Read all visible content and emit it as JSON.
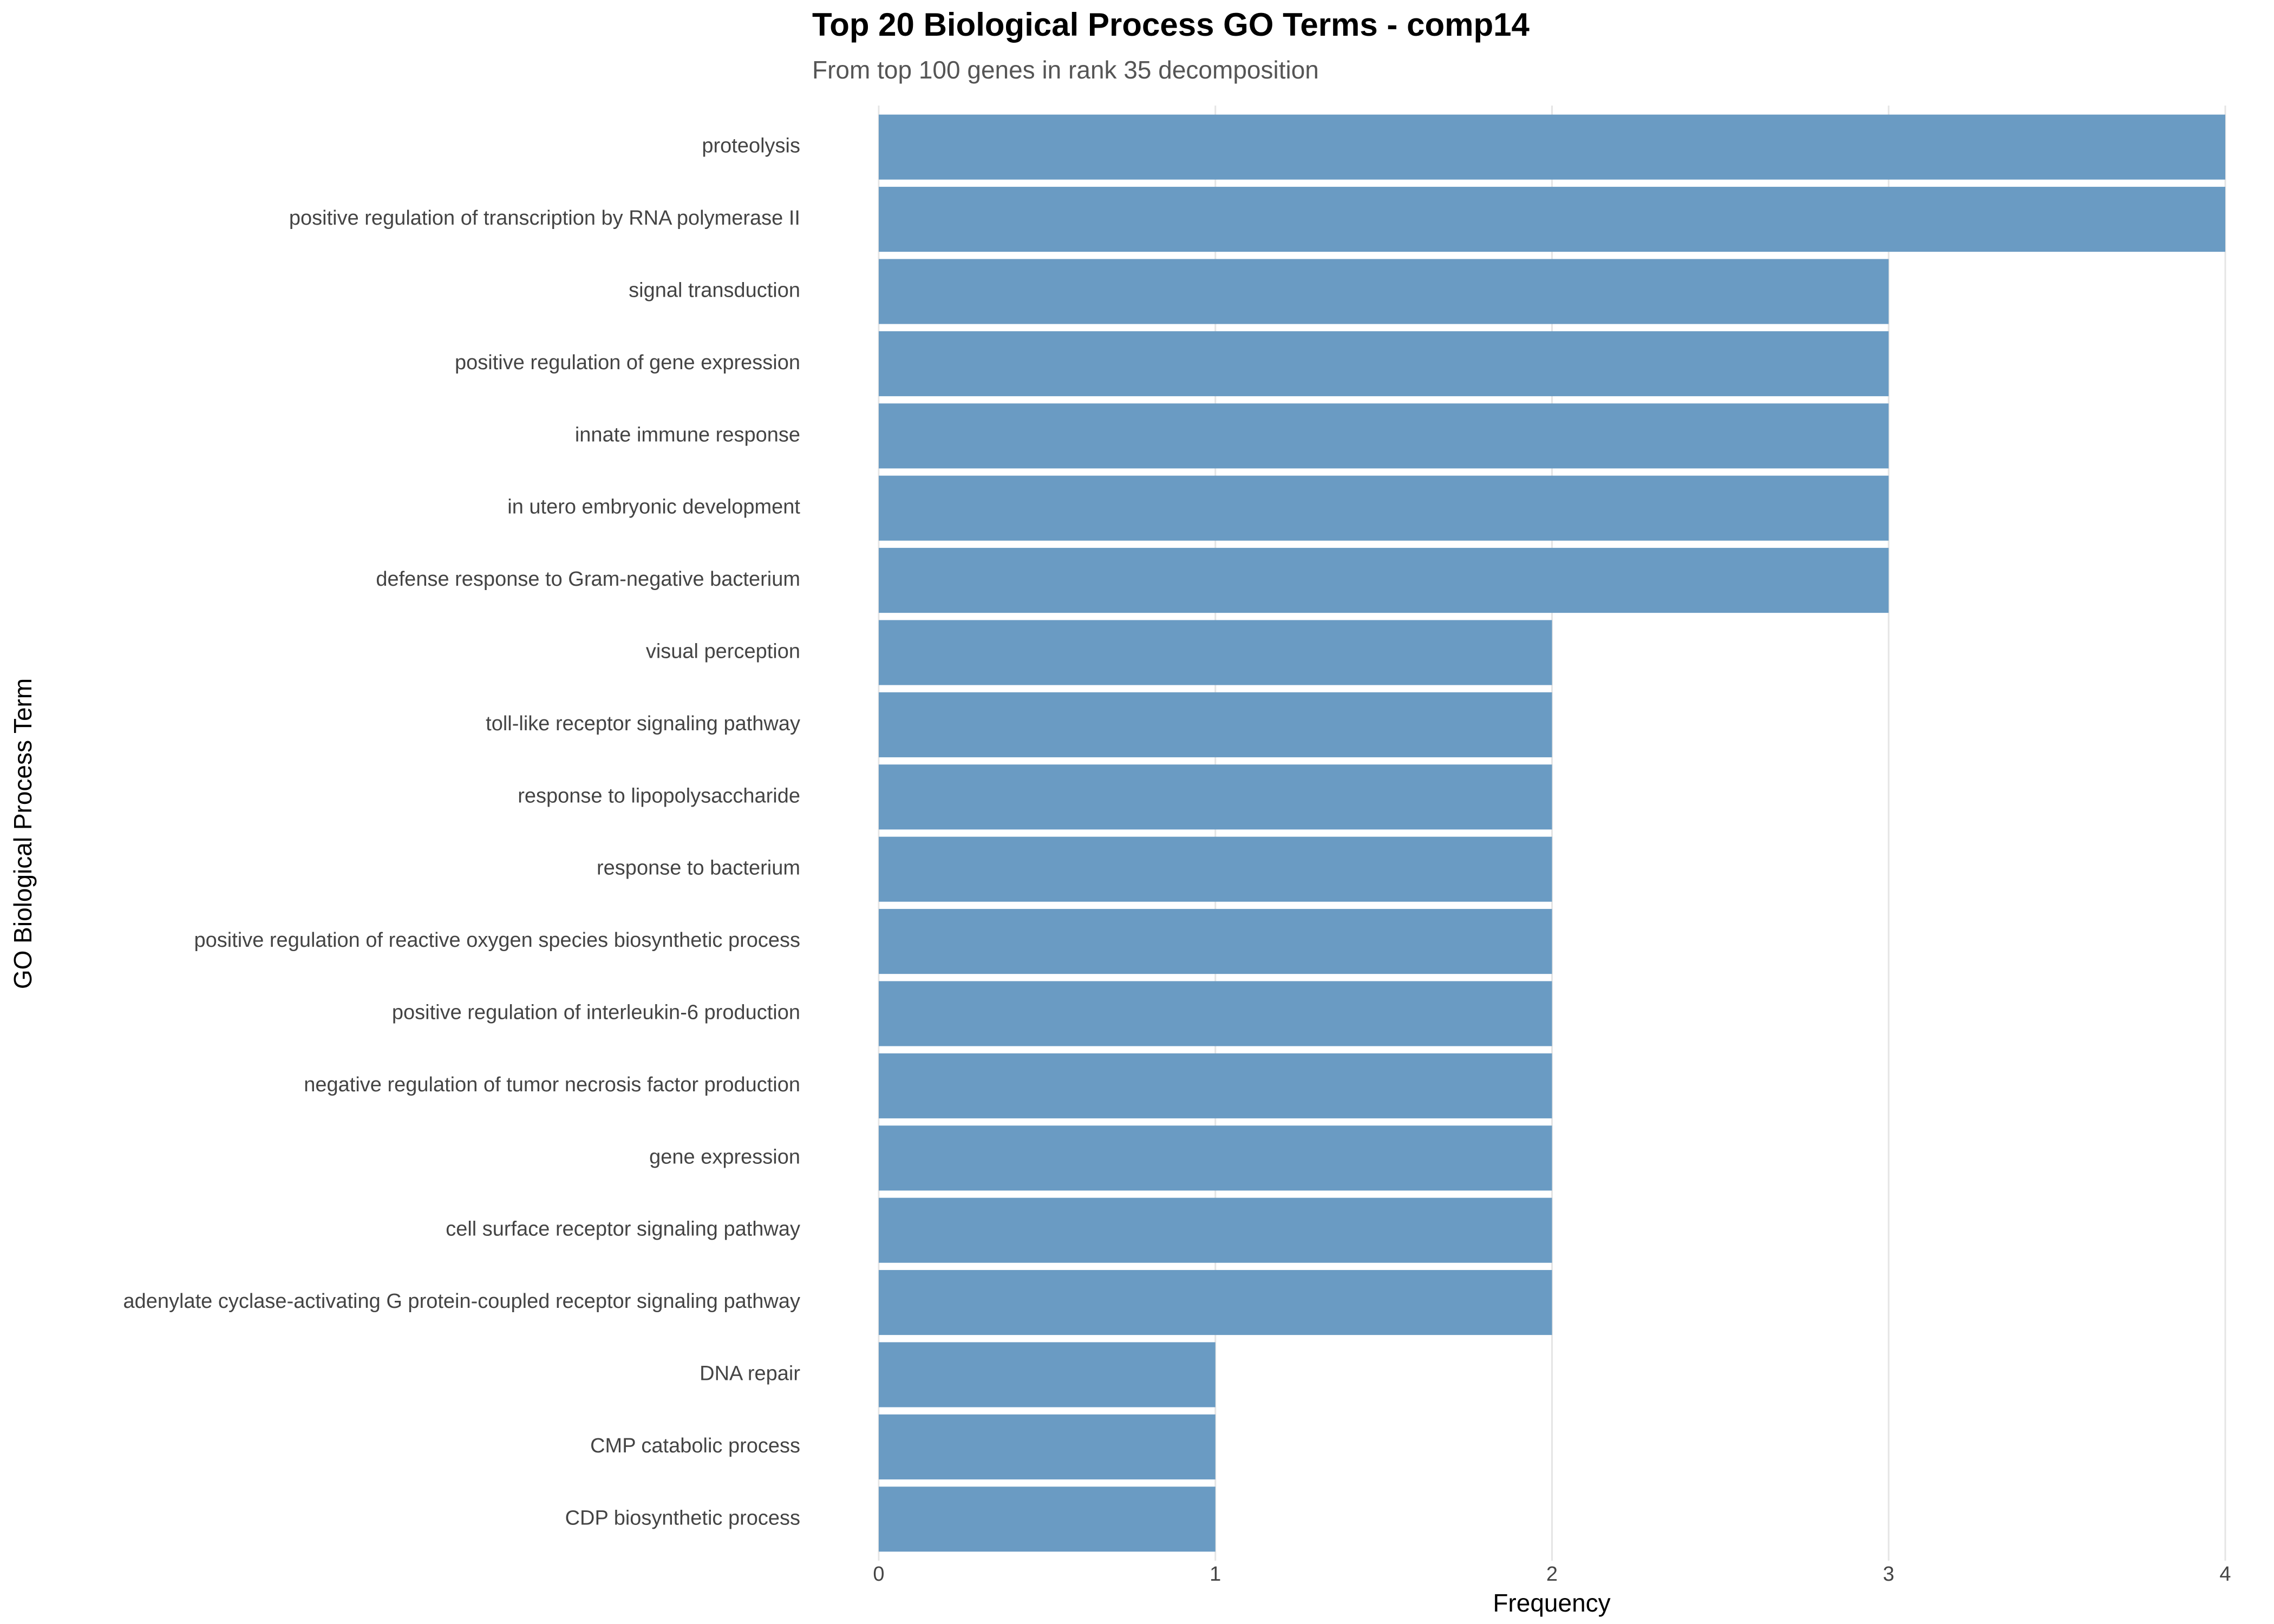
{
  "chart_data": {
    "type": "bar",
    "orientation": "horizontal",
    "title": "Top 20 Biological Process GO Terms - comp14",
    "subtitle": "From top 100 genes in rank 35 decomposition",
    "x_label": "Frequency",
    "y_label": "GO Biological Process Term",
    "categories": [
      "proteolysis",
      "positive regulation of transcription by RNA polymerase II",
      "signal transduction",
      "positive regulation of gene expression",
      "innate immune response",
      "in utero embryonic development",
      "defense response to Gram-negative bacterium",
      "visual perception",
      "toll-like receptor signaling pathway",
      "response to lipopolysaccharide",
      "response to bacterium",
      "positive regulation of reactive oxygen species biosynthetic process",
      "positive regulation of interleukin-6 production",
      "negative regulation of tumor necrosis factor production",
      "gene expression",
      "cell surface receptor signaling pathway",
      "adenylate cyclase-activating G protein-coupled receptor signaling pathway",
      "DNA repair",
      "CMP catabolic process",
      "CDP biosynthetic process"
    ],
    "values": [
      4,
      4,
      3,
      3,
      3,
      3,
      3,
      2,
      2,
      2,
      2,
      2,
      2,
      2,
      2,
      2,
      2,
      1,
      1,
      1
    ],
    "color": "#6a9bc3",
    "xlim": [
      0,
      4
    ],
    "xticks": [
      0,
      1,
      2,
      3,
      4
    ],
    "grid": true
  }
}
